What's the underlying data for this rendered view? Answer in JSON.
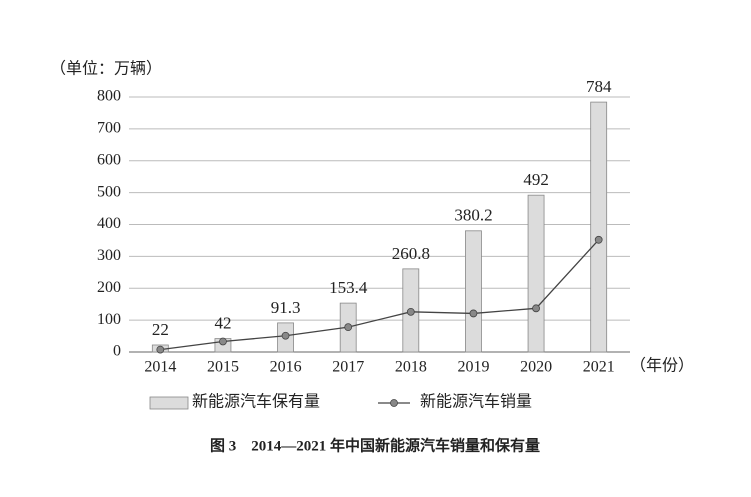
{
  "chart_data": {
    "type": "bar",
    "title": "图 3　2014—2021 年中国新能源汽车销量和保有量",
    "y_label": "（单位：万辆）",
    "x_label": "（年份）",
    "categories": [
      "2014",
      "2015",
      "2016",
      "2017",
      "2018",
      "2019",
      "2020",
      "2021"
    ],
    "series": [
      {
        "name": "新能源汽车保有量",
        "type": "bar",
        "color": "#dcdcdc",
        "values": [
          22,
          42,
          91.3,
          153.4,
          260.8,
          380.2,
          492,
          784
        ]
      },
      {
        "name": "新能源汽车销量",
        "type": "line",
        "color": "#444444",
        "values": [
          7.5,
          33,
          51,
          78,
          126,
          121,
          137,
          352
        ]
      }
    ],
    "ylim": [
      0,
      800
    ],
    "yticks": [
      0,
      100,
      200,
      300,
      400,
      500,
      600,
      700,
      800
    ],
    "grid": true
  }
}
